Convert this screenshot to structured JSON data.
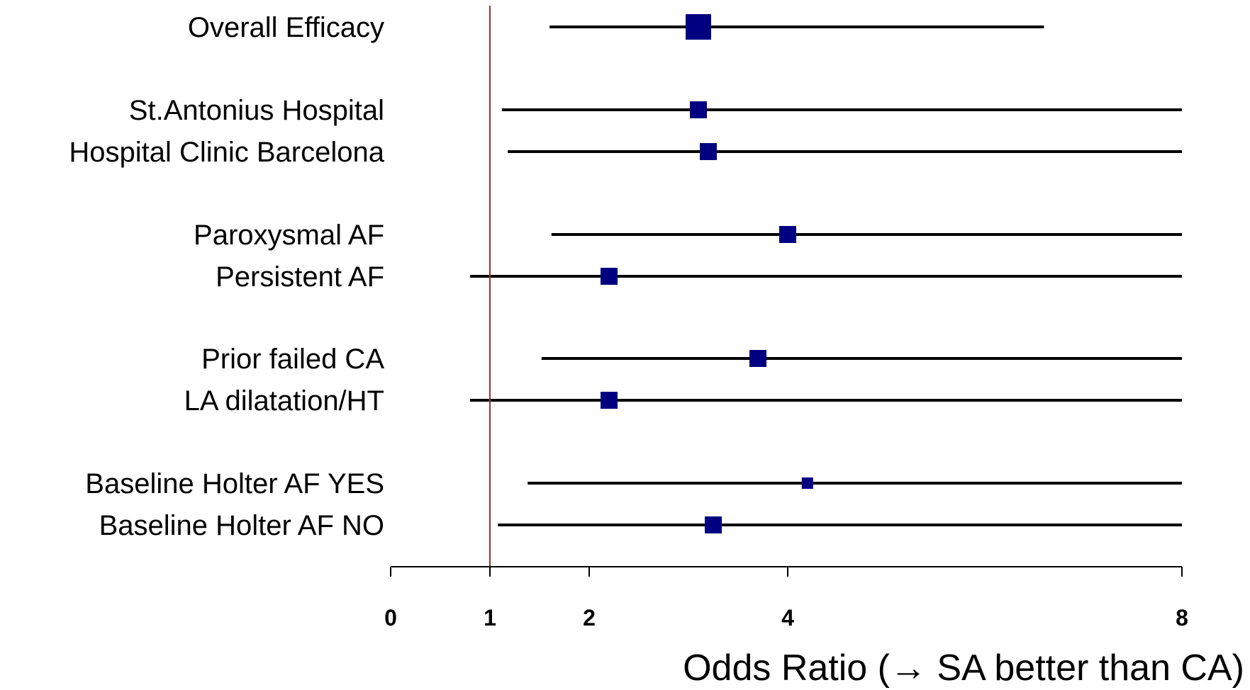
{
  "chart_data": {
    "type": "forest",
    "xlabel": "Odds Ratio (→ SA better than CA)",
    "x_ticks": [
      "0",
      "1",
      "2",
      "4",
      "8"
    ],
    "reference_line": 1,
    "colors": {
      "marker": "#000080",
      "ci_line": "#000000",
      "reference": "#993333",
      "axis": "#000000"
    },
    "rows": [
      {
        "label": "Overall Efficacy",
        "or": 3.1,
        "ci_low": 1.6,
        "ci_high": 6.6,
        "marker_size": "large"
      },
      {
        "label": "St.Antonius Hospital",
        "or": 3.1,
        "ci_low": 1.12,
        "ci_high": 8.0,
        "marker_size": "medium"
      },
      {
        "label": "Hospital Clinic Barcelona",
        "or": 3.2,
        "ci_low": 1.18,
        "ci_high": 8.0,
        "marker_size": "medium"
      },
      {
        "label": "Paroxysmal AF",
        "or": 4.0,
        "ci_low": 1.62,
        "ci_high": 8.0,
        "marker_size": "medium"
      },
      {
        "label": "Persistent AF",
        "or": 2.2,
        "ci_low": 0.8,
        "ci_high": 8.0,
        "marker_size": "medium"
      },
      {
        "label": "Prior failed CA",
        "or": 3.7,
        "ci_low": 1.52,
        "ci_high": 8.0,
        "marker_size": "medium"
      },
      {
        "label": "LA dilatation/HT",
        "or": 2.2,
        "ci_low": 0.8,
        "ci_high": 8.0,
        "marker_size": "medium"
      },
      {
        "label": "Baseline Holter AF YES",
        "or": 4.2,
        "ci_low": 1.38,
        "ci_high": 8.0,
        "marker_size": "small"
      },
      {
        "label": "Baseline Holter AF NO",
        "or": 3.25,
        "ci_low": 1.08,
        "ci_high": 8.0,
        "marker_size": "medium"
      }
    ]
  }
}
